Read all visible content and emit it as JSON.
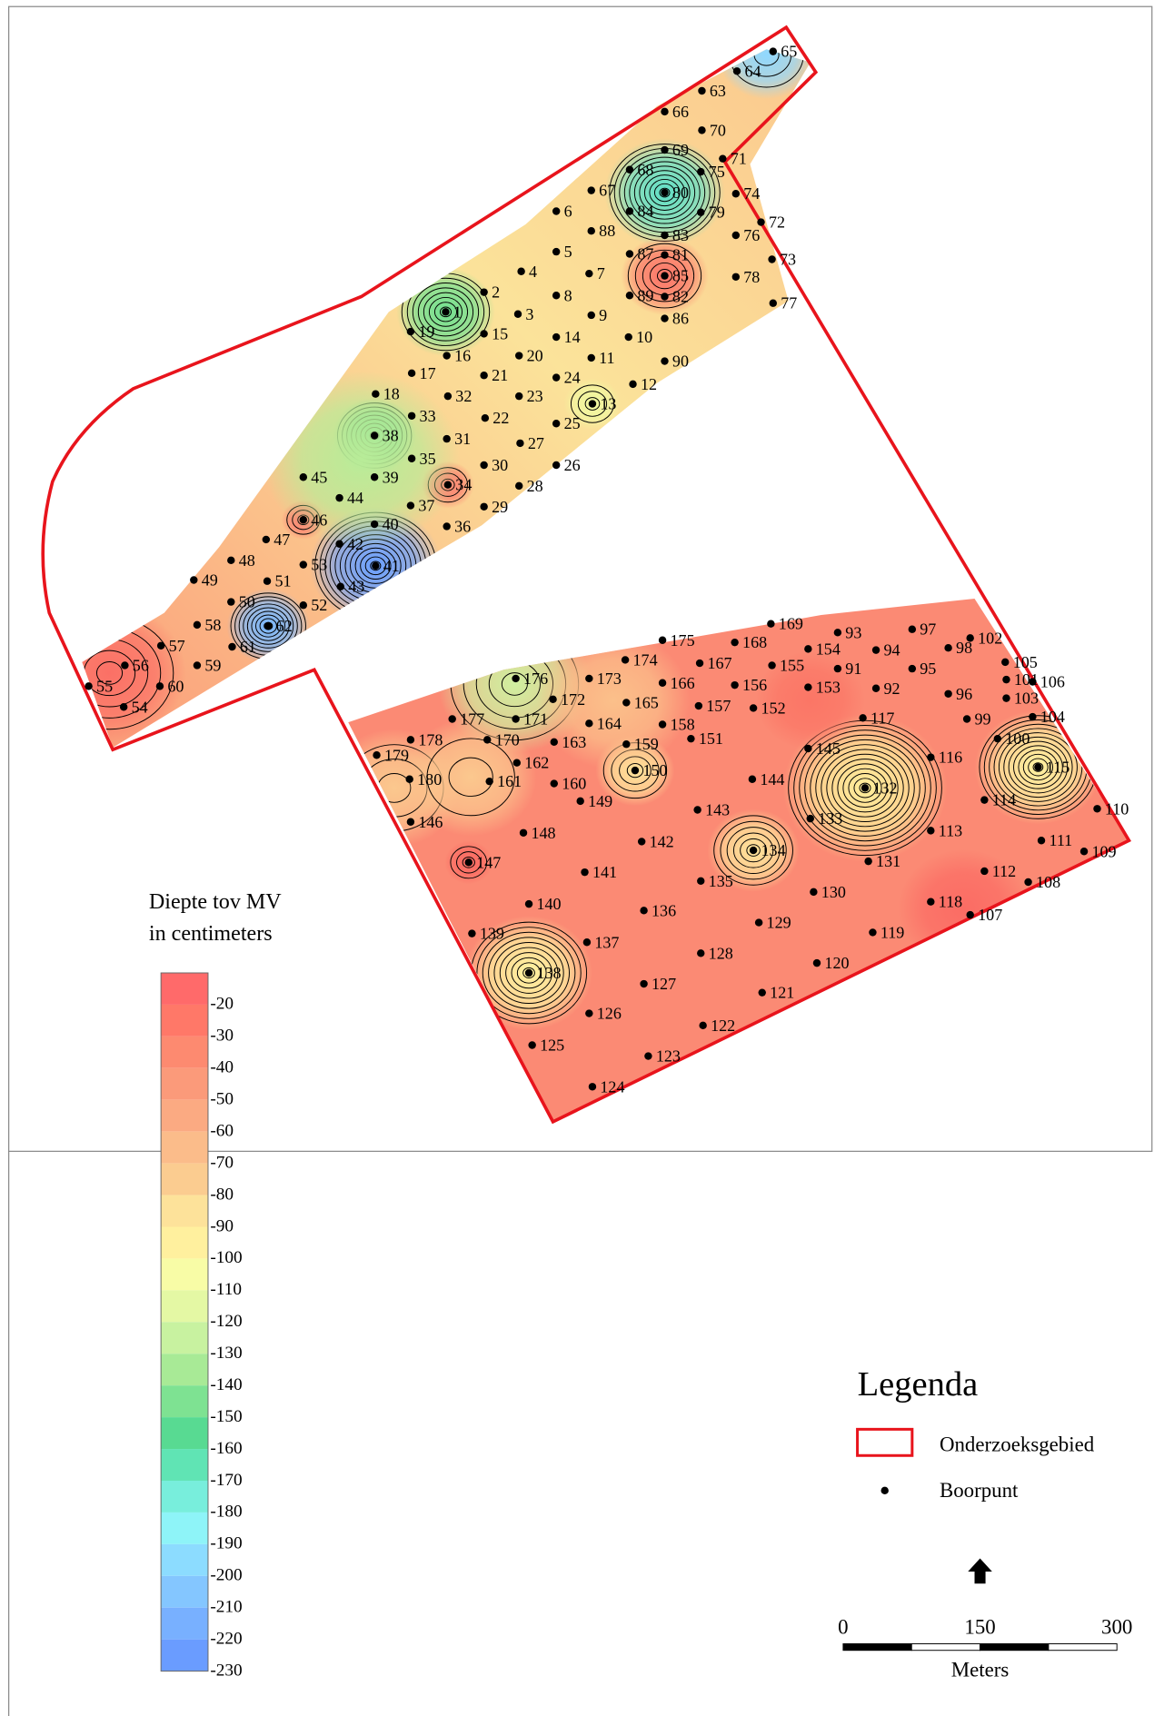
{
  "legend_scale": {
    "title": [
      "Diepte tov MV",
      "in centimeters"
    ],
    "ticks": [
      -20,
      -30,
      -40,
      -50,
      -60,
      -70,
      -80,
      -90,
      -100,
      -110,
      -120,
      -130,
      -140,
      -150,
      -160,
      -170,
      -180,
      -190,
      -200,
      -210,
      -220,
      -230
    ]
  },
  "legend": {
    "title": "Legenda",
    "items": [
      "Onderzoeksgebied",
      "Boorpunt"
    ]
  },
  "scale_bar": {
    "ticks": [
      0,
      150,
      300
    ],
    "unit": "Meters"
  },
  "points": [
    1,
    2,
    3,
    4,
    5,
    6,
    7,
    8,
    9,
    10,
    11,
    12,
    13,
    14,
    15,
    16,
    17,
    18,
    19,
    20,
    21,
    22,
    23,
    24,
    25,
    26,
    27,
    28,
    29,
    30,
    31,
    32,
    33,
    34,
    35,
    36,
    37,
    38,
    39,
    40,
    41,
    42,
    43,
    44,
    45,
    46,
    47,
    48,
    49,
    50,
    51,
    52,
    53,
    54,
    55,
    56,
    57,
    58,
    59,
    60,
    61,
    62,
    63,
    64,
    65,
    66,
    67,
    68,
    69,
    70,
    71,
    72,
    73,
    74,
    75,
    76,
    77,
    78,
    79,
    80,
    81,
    82,
    83,
    84,
    85,
    86,
    87,
    88,
    89,
    90,
    91,
    92,
    93,
    94,
    95,
    96,
    97,
    98,
    99,
    100,
    101,
    102,
    103,
    104,
    105,
    106,
    107,
    108,
    109,
    110,
    111,
    112,
    113,
    114,
    115,
    116,
    117,
    118,
    119,
    120,
    121,
    122,
    123,
    124,
    125,
    126,
    127,
    128,
    129,
    130,
    131,
    132,
    133,
    134,
    135,
    136,
    137,
    138,
    139,
    140,
    141,
    142,
    143,
    144,
    145,
    146,
    147,
    148,
    149,
    150,
    151,
    152,
    153,
    154,
    155,
    156,
    157,
    158,
    159,
    160,
    161,
    162,
    163,
    164,
    165,
    166,
    167,
    168,
    169,
    170,
    171,
    172,
    173,
    174,
    175,
    176,
    177,
    178,
    179,
    180
  ]
}
